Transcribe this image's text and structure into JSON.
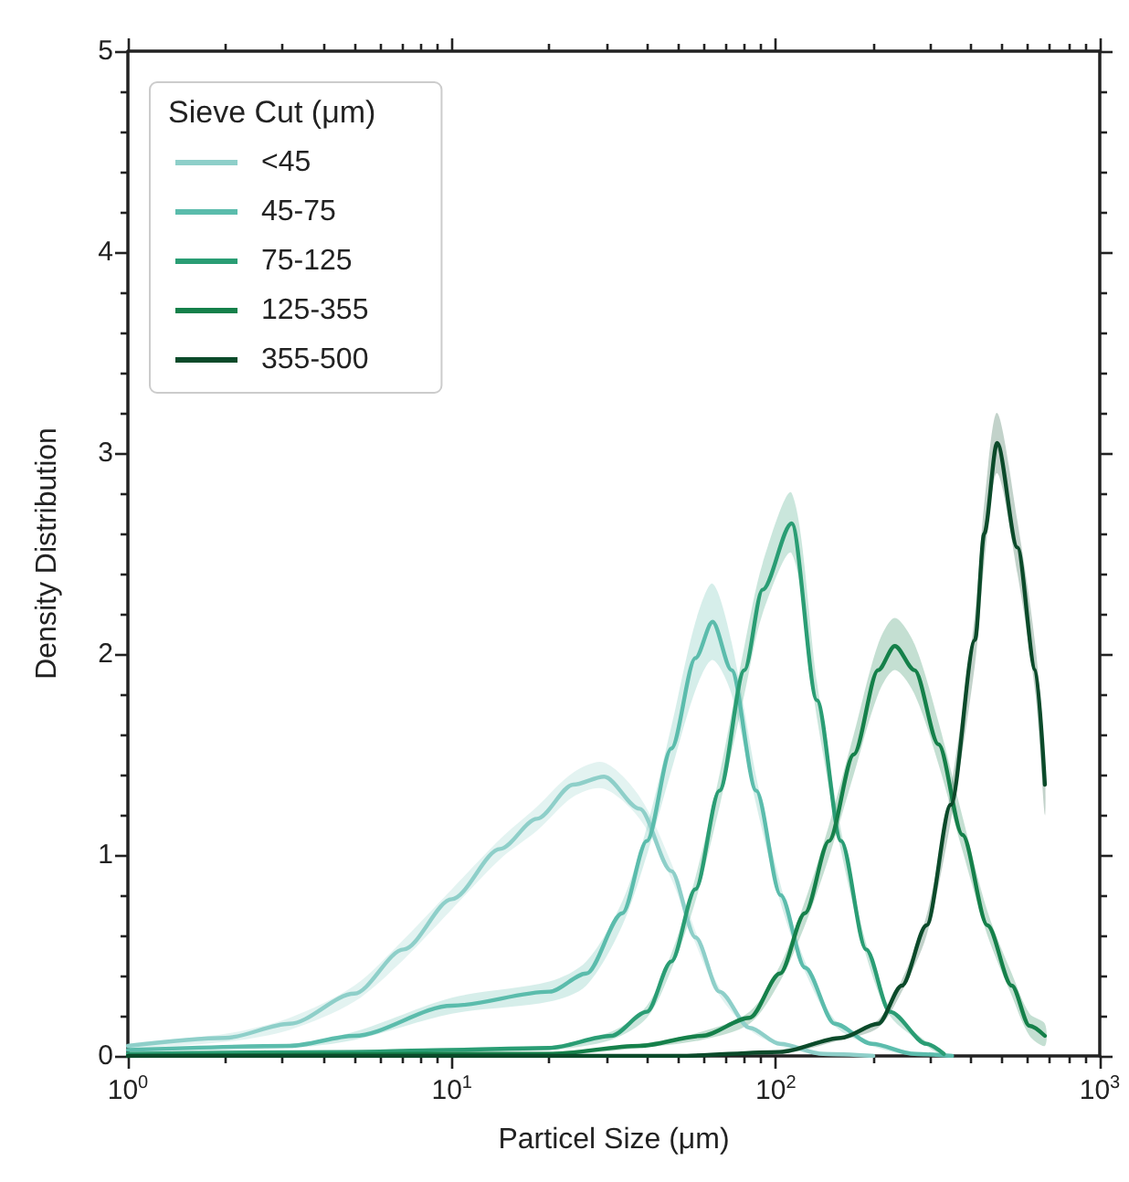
{
  "chart_data": {
    "type": "line",
    "xlabel": "Particel Size (μm)",
    "ylabel": "Density Distribution",
    "legend_title": "Sieve Cut (μm)",
    "log": "x",
    "xlim": [
      1,
      1000
    ],
    "ylim": [
      0,
      5
    ],
    "xticks": [
      {
        "value": 1,
        "label": "10$^{0}$"
      },
      {
        "value": 2,
        "label": null
      },
      {
        "value": 3,
        "label": null
      },
      {
        "value": 4,
        "label": null
      },
      {
        "value": 5,
        "label": null
      },
      {
        "value": 6,
        "label": null
      },
      {
        "value": 7,
        "label": null
      },
      {
        "value": 8,
        "label": null
      },
      {
        "value": 9,
        "label": null
      },
      {
        "value": 10,
        "label": "10$^{1}$"
      },
      {
        "value": 20,
        "label": null
      },
      {
        "value": 30,
        "label": null
      },
      {
        "value": 40,
        "label": null
      },
      {
        "value": 50,
        "label": null
      },
      {
        "value": 60,
        "label": null
      },
      {
        "value": 70,
        "label": null
      },
      {
        "value": 80,
        "label": null
      },
      {
        "value": 90,
        "label": null
      },
      {
        "value": 100,
        "label": "10$^{2}$"
      },
      {
        "value": 200,
        "label": null
      },
      {
        "value": 300,
        "label": null
      },
      {
        "value": 400,
        "label": null
      },
      {
        "value": 500,
        "label": null
      },
      {
        "value": 600,
        "label": null
      },
      {
        "value": 700,
        "label": null
      },
      {
        "value": 800,
        "label": null
      },
      {
        "value": 900,
        "label": null
      },
      {
        "value": 1000,
        "label": "10$^{3}$"
      }
    ],
    "yticks": [
      0,
      {
        "value": 0.2,
        "label": null
      },
      {
        "value": 0.4,
        "label": null
      },
      {
        "value": 0.6,
        "label": null
      },
      {
        "value": 0.8,
        "label": null
      },
      1,
      {
        "value": 1.2,
        "label": null
      },
      {
        "value": 1.4,
        "label": null
      },
      {
        "value": 1.6,
        "label": null
      },
      {
        "value": 1.8,
        "label": null
      },
      2,
      {
        "value": 2.2,
        "label": null
      },
      {
        "value": 2.4,
        "label": null
      },
      {
        "value": 2.6,
        "label": null
      },
      {
        "value": 2.8,
        "label": null
      },
      3,
      {
        "value": 3.2,
        "label": null
      },
      {
        "value": 3.4,
        "label": null
      },
      {
        "value": 3.6,
        "label": null
      },
      {
        "value": 3.8,
        "label": null
      },
      4,
      {
        "value": 4.2,
        "label": null
      },
      {
        "value": 4.4,
        "label": null
      },
      {
        "value": 4.6,
        "label": null
      },
      {
        "value": 4.8,
        "label": null
      },
      5
    ],
    "grid": false,
    "legend": "top left",
    "marker": "none",
    "line_style": "solid",
    "series": [
      {
        "name": "<45",
        "color": "#8ecfc9",
        "x": [
          1,
          2,
          3.16,
          5,
          7.1,
          10,
          14.1,
          18.3,
          23.7,
          29.5,
          38,
          47.6,
          56.5,
          67,
          83,
          103,
          140,
          200
        ],
        "values": [
          0.05,
          0.09,
          0.16,
          0.31,
          0.53,
          0.78,
          1.03,
          1.18,
          1.35,
          1.39,
          1.23,
          0.92,
          0.59,
          0.32,
          0.14,
          0.06,
          0.01,
          0
        ],
        "lower": [
          0.04,
          0.07,
          0.13,
          0.27,
          0.48,
          0.73,
          0.98,
          1.12,
          1.29,
          1.33,
          1.18,
          0.88,
          0.56,
          0.3,
          0.13,
          0.05,
          0,
          0
        ],
        "upper": [
          0.06,
          0.11,
          0.19,
          0.35,
          0.58,
          0.83,
          1.08,
          1.24,
          1.41,
          1.46,
          1.29,
          0.96,
          0.62,
          0.34,
          0.15,
          0.07,
          0.02,
          0.01
        ]
      },
      {
        "name": "45-75",
        "color": "#5bbcac",
        "x": [
          1,
          3.16,
          5,
          10,
          20,
          26,
          33.6,
          40,
          47.6,
          56.5,
          63.8,
          73,
          87,
          103.5,
          123,
          152,
          198,
          268,
          350
        ],
        "values": [
          0.03,
          0.05,
          0.1,
          0.25,
          0.32,
          0.41,
          0.71,
          1.07,
          1.53,
          1.98,
          2.16,
          1.92,
          1.32,
          0.8,
          0.44,
          0.16,
          0.06,
          0.01,
          0
        ],
        "lower": [
          0.02,
          0.04,
          0.08,
          0.21,
          0.27,
          0.35,
          0.65,
          1.0,
          1.42,
          1.82,
          1.97,
          1.8,
          1.25,
          0.76,
          0.42,
          0.15,
          0.05,
          0,
          0
        ],
        "upper": [
          0.04,
          0.06,
          0.12,
          0.29,
          0.37,
          0.47,
          0.77,
          1.14,
          1.64,
          2.16,
          2.35,
          2.06,
          1.39,
          0.85,
          0.47,
          0.18,
          0.07,
          0.02,
          0.01
        ]
      },
      {
        "name": "75-125",
        "color": "#2a9d74",
        "x": [
          1,
          5,
          10,
          20,
          31,
          40,
          47.6,
          56.5,
          67,
          80,
          91,
          112,
          134,
          159,
          190,
          225,
          292,
          330
        ],
        "values": [
          0.01,
          0.02,
          0.03,
          0.04,
          0.1,
          0.22,
          0.47,
          0.83,
          1.32,
          1.92,
          2.32,
          2.65,
          1.77,
          1.07,
          0.53,
          0.22,
          0.06,
          0.01
        ],
        "lower": [
          0,
          0.01,
          0.02,
          0.03,
          0.08,
          0.19,
          0.43,
          0.77,
          1.24,
          1.8,
          2.2,
          2.5,
          1.68,
          1.02,
          0.5,
          0.2,
          0.05,
          0
        ],
        "upper": [
          0.02,
          0.03,
          0.04,
          0.05,
          0.12,
          0.25,
          0.51,
          0.89,
          1.4,
          2.04,
          2.45,
          2.8,
          1.86,
          1.12,
          0.56,
          0.24,
          0.07,
          0.02
        ]
      },
      {
        "name": "125-355",
        "color": "#15804a",
        "x": [
          1,
          10,
          20,
          38,
          59,
          83,
          103,
          123,
          146,
          174,
          207,
          233,
          268,
          318,
          377,
          450,
          535,
          607,
          677
        ],
        "values": [
          0,
          0.01,
          0.01,
          0.05,
          0.1,
          0.19,
          0.41,
          0.71,
          1.07,
          1.5,
          1.92,
          2.04,
          1.92,
          1.55,
          1.1,
          0.65,
          0.35,
          0.15,
          0.1
        ],
        "lower": [
          0,
          0,
          0,
          0.04,
          0.08,
          0.16,
          0.37,
          0.65,
          0.99,
          1.4,
          1.8,
          1.92,
          1.8,
          1.45,
          1.02,
          0.6,
          0.3,
          0.1,
          0.05
        ],
        "upper": [
          0.01,
          0.02,
          0.02,
          0.06,
          0.12,
          0.22,
          0.45,
          0.77,
          1.15,
          1.6,
          2.05,
          2.18,
          2.05,
          1.66,
          1.19,
          0.72,
          0.41,
          0.21,
          0.16
        ]
      },
      {
        "name": "355-500",
        "color": "#0b4a2a",
        "x": [
          1,
          50,
          103,
          159,
          207,
          245,
          292,
          347,
          412,
          440,
          482,
          557,
          633,
          677
        ],
        "values": [
          0,
          0,
          0.02,
          0.09,
          0.16,
          0.35,
          0.65,
          1.25,
          2.07,
          2.6,
          3.05,
          2.53,
          1.92,
          1.35
        ],
        "lower": [
          0,
          0,
          0.01,
          0.08,
          0.14,
          0.32,
          0.6,
          1.17,
          1.95,
          2.45,
          2.9,
          2.4,
          1.8,
          1.2
        ],
        "upper": [
          0,
          0.01,
          0.03,
          0.1,
          0.18,
          0.38,
          0.7,
          1.33,
          2.2,
          2.75,
          3.2,
          2.66,
          2.04,
          1.45
        ]
      }
    ]
  }
}
